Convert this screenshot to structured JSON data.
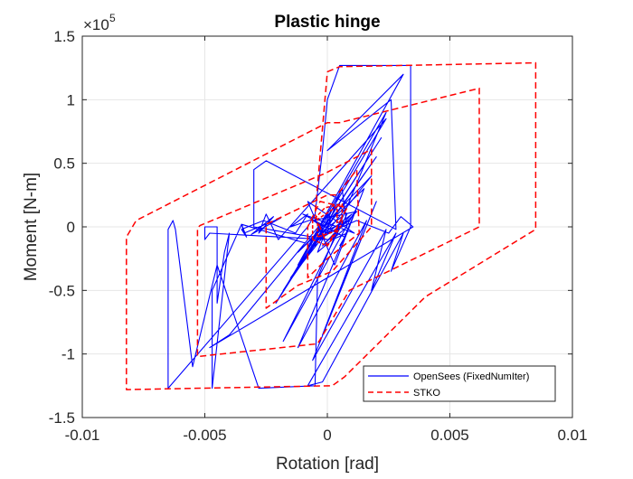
{
  "chart_data": {
    "type": "line",
    "title": "Plastic hinge",
    "xlabel": "Rotation [rad]",
    "ylabel": "Moment [N-m]",
    "y_exponent_label": "×10",
    "y_exponent_power": "5",
    "xlim": [
      -0.01,
      0.01
    ],
    "ylim": [
      -1.5,
      1.5
    ],
    "y_scale": 100000,
    "xticks": [
      -0.01,
      -0.005,
      0,
      0.005,
      0.01
    ],
    "xtick_labels": [
      "-0.01",
      "-0.005",
      "0",
      "0.005",
      "0.01"
    ],
    "yticks": [
      -1.5,
      -1,
      -0.5,
      0,
      0.5,
      1,
      1.5
    ],
    "ytick_labels": [
      "-1.5",
      "-1",
      "-0.5",
      "0",
      "0.5",
      "1",
      "1.5"
    ],
    "grid": true,
    "legend_position": "bottom-right",
    "series": [
      {
        "name": "OpenSees (FixedNumIter)",
        "color": "#0000ff",
        "style": "solid",
        "points": [
          [
            0.0005,
            -0.15
          ],
          [
            0.0008,
            -0.05
          ],
          [
            0.0002,
            -0.1
          ],
          [
            0.0006,
            0.08
          ],
          [
            -0.0003,
            -0.05
          ],
          [
            0.0009,
            0.05
          ],
          [
            -0.0005,
            -0.12
          ],
          [
            0.001,
            0.1
          ],
          [
            -0.0002,
            -0.15
          ],
          [
            0.0012,
            0.12
          ],
          [
            -0.0006,
            0.05
          ],
          [
            0.0007,
            -0.08
          ],
          [
            -0.001,
            0.1
          ],
          [
            0.0011,
            -0.05
          ],
          [
            -0.0008,
            0.2
          ],
          [
            0.0003,
            -0.3
          ],
          [
            0.0015,
            0.3
          ],
          [
            -0.0012,
            -0.2
          ],
          [
            0.0018,
            0.4
          ],
          [
            -0.0015,
            -0.4
          ],
          [
            0.002,
            0.55
          ],
          [
            -0.0018,
            -0.5
          ],
          [
            0.0022,
            0.7
          ],
          [
            -0.0021,
            -0.6
          ],
          [
            0.0024,
            0.85
          ],
          [
            -0.002,
            -0.1
          ],
          [
            -0.0025,
            0.1
          ],
          [
            -0.0028,
            -0.05
          ],
          [
            -0.0022,
            0.08
          ],
          [
            -0.0031,
            -0.06
          ],
          [
            -0.0019,
            0.07
          ],
          [
            -0.0034,
            -0.05
          ],
          [
            -0.0035,
            0.02
          ],
          [
            -0.0033,
            -0.08
          ],
          [
            -0.0035,
            -0.02
          ],
          [
            -0.0026,
            0.05
          ],
          [
            -0.0013,
            -0.05
          ],
          [
            -0.0008,
            0.1
          ],
          [
            -0.0015,
            0.0
          ],
          [
            -0.0006,
            0.06
          ],
          [
            0.0,
            -0.05
          ],
          [
            0.0012,
            0.05
          ],
          [
            0.0025,
            -0.05
          ],
          [
            0.003,
            0.08
          ],
          [
            0.0035,
            0.0
          ],
          [
            -0.0048,
            -0.95
          ],
          [
            -0.004,
            -0.85
          ],
          [
            0.0004,
            0.18
          ],
          [
            0.0008,
            0.1
          ],
          [
            -0.0018,
            -0.9
          ],
          [
            0.0012,
            0.15
          ],
          [
            -0.0012,
            -0.95
          ],
          [
            0.0016,
            0.05
          ],
          [
            -0.0002,
            -0.85
          ],
          [
            0.002,
            0.2
          ],
          [
            -0.0006,
            -1.05
          ],
          [
            0.0024,
            -0.02
          ],
          [
            0.0018,
            -0.5
          ],
          [
            0.0028,
            -0.05
          ],
          [
            -0.0008,
            -1.25
          ],
          [
            -0.0002,
            -1.22
          ],
          [
            0.0031,
            -0.05
          ],
          [
            0.0026,
            -0.35
          ],
          [
            0.0034,
            0.0
          ],
          [
            0.0034,
            1.27
          ],
          [
            0.0005,
            1.27
          ],
          [
            0.0,
            1.0
          ],
          [
            -0.0002,
            0.6
          ],
          [
            -0.0005,
            0.1
          ],
          [
            -0.0008,
            0.0
          ],
          [
            -0.0065,
            -1.27
          ],
          [
            -0.0065,
            -0.02
          ],
          [
            -0.0063,
            0.05
          ],
          [
            -0.0062,
            -0.02
          ],
          [
            -0.0055,
            -1.1
          ],
          [
            -0.0045,
            -0.3
          ],
          [
            -0.0028,
            -1.27
          ],
          [
            -0.0005,
            -1.25
          ],
          [
            -0.0004,
            -0.4
          ],
          [
            0.0024,
            0.9
          ],
          [
            -0.0012,
            -0.3
          ],
          [
            0.0031,
            1.2
          ],
          [
            0.0,
            0.6
          ],
          [
            0.0026,
            1.0
          ],
          [
            0.0028,
            -0.02
          ],
          [
            -0.0025,
            0.52
          ],
          [
            -0.003,
            0.45
          ],
          [
            -0.003,
            0.0
          ],
          [
            0.0,
            -0.1
          ],
          [
            -0.0048,
            -0.05
          ],
          [
            -0.005,
            -0.1
          ],
          [
            -0.005,
            0.0
          ],
          [
            -0.0045,
            0.0
          ],
          [
            -0.0045,
            -0.6
          ],
          [
            -0.0042,
            -0.2
          ],
          [
            -0.004,
            -0.05
          ],
          [
            -0.0047,
            -1.27
          ],
          [
            -0.0047,
            -0.5
          ],
          [
            -0.0035,
            0.02
          ],
          [
            -0.0005,
            -0.15
          ],
          [
            0.0006,
            0.3
          ],
          [
            0.0008,
            0.0
          ],
          [
            -0.0004,
            -0.2
          ],
          [
            0.0003,
            0.15
          ]
        ]
      },
      {
        "name": "STKO",
        "color": "#ff0000",
        "style": "dashed",
        "points": [
          [
            0.0,
            1.22
          ],
          [
            0.0005,
            1.26
          ],
          [
            0.0085,
            1.29
          ],
          [
            0.0085,
            -0.02
          ],
          [
            0.004,
            -0.55
          ],
          [
            0.0007,
            -1.18
          ],
          [
            0.0002,
            -1.25
          ],
          [
            -0.0082,
            -1.28
          ],
          [
            -0.0082,
            -0.08
          ],
          [
            -0.0078,
            0.05
          ],
          [
            -0.0078,
            0.05
          ],
          [
            0.0,
            0.82
          ],
          [
            0.0005,
            0.82
          ],
          [
            0.0062,
            1.09
          ],
          [
            0.0062,
            0.0
          ],
          [
            0.0009,
            -0.5
          ],
          [
            -0.0004,
            -0.92
          ],
          [
            -0.0053,
            -1.02
          ],
          [
            -0.0053,
            -0.01
          ],
          [
            -0.0052,
            0.01
          ],
          [
            -0.0001,
            0.42
          ],
          [
            0.0002,
            0.45
          ],
          [
            0.0018,
            0.61
          ],
          [
            0.0018,
            0.0
          ],
          [
            0.0002,
            -0.35
          ],
          [
            -0.0012,
            -0.46
          ],
          [
            -0.0025,
            -0.64
          ],
          [
            -0.0025,
            0.02
          ],
          [
            0.0,
            0.25
          ],
          [
            0.0004,
            0.25
          ],
          [
            0.0012,
            0.45
          ],
          [
            0.0013,
            -0.05
          ],
          [
            0.0,
            -0.25
          ],
          [
            -0.0008,
            -0.4
          ],
          [
            -0.0008,
            0.0
          ],
          [
            -0.0003,
            0.2
          ],
          [
            0.0008,
            0.15
          ],
          [
            0.0,
            -0.15
          ],
          [
            -0.0005,
            0.1
          ],
          [
            0.0,
            1.22
          ]
        ],
        "inner_loops": [
          [
            [
              -0.0006,
              -0.1
            ],
            [
              -0.0006,
              0.05
            ],
            [
              -0.0001,
              0.15
            ],
            [
              0.0006,
              0.18
            ],
            [
              0.0006,
              0.02
            ],
            [
              0.0,
              -0.15
            ],
            [
              -0.0006,
              -0.1
            ]
          ],
          [
            [
              -0.0004,
              -0.08
            ],
            [
              -0.0004,
              0.06
            ],
            [
              0.0004,
              0.16
            ],
            [
              0.0004,
              -0.03
            ],
            [
              -0.0004,
              -0.08
            ]
          ]
        ]
      }
    ]
  }
}
